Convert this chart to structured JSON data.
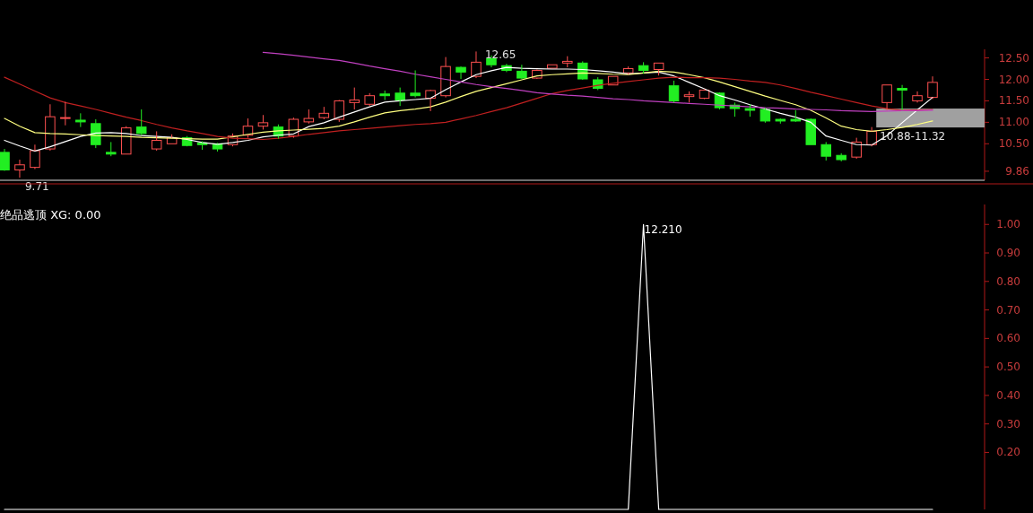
{
  "chart_data": [
    {
      "type": "candlestick",
      "categories": [
        null,
        null,
        null,
        null,
        null,
        null,
        null,
        null,
        null,
        null,
        null,
        null,
        null,
        null,
        null,
        null,
        null,
        null,
        null,
        null,
        null,
        null,
        null,
        null,
        null,
        null,
        null,
        null,
        null,
        null,
        null,
        null,
        null,
        null,
        null,
        null,
        null,
        null,
        null,
        null,
        null,
        null,
        null,
        null,
        null,
        null,
        null,
        null,
        null,
        null,
        null,
        null,
        null,
        null,
        null,
        null,
        null,
        null,
        null,
        null,
        null,
        null
      ],
      "ohlc": [
        [
          10.3,
          10.38,
          9.87,
          9.89
        ],
        [
          9.89,
          10.13,
          9.71,
          10.01
        ],
        [
          9.95,
          10.48,
          9.91,
          10.34
        ],
        [
          10.38,
          11.42,
          10.34,
          11.13
        ],
        [
          11.09,
          11.48,
          10.93,
          11.11
        ],
        [
          11.05,
          11.21,
          10.89,
          11.01
        ],
        [
          10.97,
          11.07,
          10.4,
          10.48
        ],
        [
          10.3,
          10.54,
          10.21,
          10.26
        ],
        [
          10.26,
          10.91,
          10.26,
          10.87
        ],
        [
          10.89,
          11.3,
          10.7,
          10.74
        ],
        [
          10.38,
          10.79,
          10.34,
          10.58
        ],
        [
          10.5,
          10.72,
          10.5,
          10.64
        ],
        [
          10.64,
          10.68,
          10.44,
          10.46
        ],
        [
          10.52,
          10.56,
          10.36,
          10.48
        ],
        [
          10.5,
          10.52,
          10.32,
          10.38
        ],
        [
          10.48,
          10.74,
          10.44,
          10.68
        ],
        [
          10.7,
          11.09,
          10.64,
          10.91
        ],
        [
          10.91,
          11.17,
          10.83,
          10.99
        ],
        [
          10.89,
          10.95,
          10.62,
          10.68
        ],
        [
          10.68,
          11.11,
          10.64,
          11.07
        ],
        [
          11.01,
          11.3,
          10.97,
          11.09
        ],
        [
          11.11,
          11.36,
          11.07,
          11.21
        ],
        [
          11.07,
          11.52,
          11.01,
          11.5
        ],
        [
          11.46,
          11.81,
          11.3,
          11.52
        ],
        [
          11.42,
          11.68,
          11.38,
          11.62
        ],
        [
          11.66,
          11.74,
          11.52,
          11.62
        ],
        [
          11.68,
          11.81,
          11.38,
          11.52
        ],
        [
          11.68,
          12.21,
          11.58,
          11.62
        ],
        [
          11.56,
          11.76,
          11.26,
          11.74
        ],
        [
          11.62,
          12.52,
          11.58,
          12.3
        ],
        [
          12.28,
          12.3,
          12.01,
          12.17
        ],
        [
          12.07,
          12.65,
          12.03,
          12.4
        ],
        [
          12.48,
          12.56,
          12.28,
          12.34
        ],
        [
          12.32,
          12.36,
          12.17,
          12.21
        ],
        [
          12.19,
          12.34,
          12.01,
          12.03
        ],
        [
          12.03,
          12.23,
          12.01,
          12.21
        ],
        [
          12.26,
          12.34,
          12.26,
          12.34
        ],
        [
          12.38,
          12.54,
          12.28,
          12.42
        ],
        [
          12.38,
          12.42,
          11.99,
          12.01
        ],
        [
          11.99,
          12.05,
          11.75,
          11.79
        ],
        [
          11.87,
          12.07,
          11.87,
          12.07
        ],
        [
          12.15,
          12.3,
          12.11,
          12.25
        ],
        [
          12.32,
          12.4,
          12.13,
          12.21
        ],
        [
          12.23,
          12.38,
          12.09,
          12.38
        ],
        [
          11.85,
          11.97,
          11.46,
          11.5
        ],
        [
          11.6,
          11.72,
          11.46,
          11.64
        ],
        [
          11.56,
          11.77,
          11.54,
          11.75
        ],
        [
          11.68,
          11.7,
          11.3,
          11.34
        ],
        [
          11.4,
          11.46,
          11.13,
          11.32
        ],
        [
          11.32,
          11.42,
          11.13,
          11.28
        ],
        [
          11.3,
          11.34,
          10.99,
          11.03
        ],
        [
          11.07,
          11.09,
          10.97,
          11.03
        ],
        [
          11.07,
          11.28,
          11.01,
          11.03
        ],
        [
          11.07,
          11.09,
          10.48,
          10.48
        ],
        [
          10.48,
          10.54,
          10.11,
          10.21
        ],
        [
          10.23,
          10.28,
          10.09,
          10.13
        ],
        [
          10.19,
          10.64,
          10.15,
          10.54
        ],
        [
          10.48,
          10.89,
          10.44,
          10.79
        ],
        [
          11.46,
          11.87,
          11.28,
          11.87
        ],
        [
          11.79,
          11.87,
          11.28,
          11.75
        ],
        [
          11.5,
          11.72,
          11.46,
          11.62
        ],
        [
          11.58,
          12.07,
          11.54,
          11.93
        ]
      ],
      "series": [
        {
          "type": "line",
          "color": "#ffffff",
          "values": [
            10.58,
            10.45,
            10.33,
            10.43,
            10.55,
            10.67,
            10.75,
            10.76,
            10.74,
            10.69,
            10.67,
            10.65,
            10.6,
            10.53,
            10.49,
            10.53,
            10.58,
            10.66,
            10.7,
            10.73,
            10.9,
            10.99,
            11.12,
            11.24,
            11.36,
            11.47,
            11.5,
            11.53,
            11.56,
            11.76,
            11.94,
            12.11,
            12.2,
            12.28,
            12.26,
            12.25,
            12.24,
            12.24,
            12.23,
            12.2,
            12.17,
            12.13,
            12.15,
            12.17,
            12.08,
            11.93,
            11.78,
            11.62,
            11.52,
            11.41,
            11.31,
            11.21,
            11.12,
            11.0,
            10.68,
            10.58,
            10.48,
            10.47,
            10.69,
            10.99,
            11.29,
            11.58
          ]
        },
        {
          "type": "line",
          "color": "#ffff80",
          "values": [
            11.09,
            10.91,
            10.76,
            10.74,
            10.73,
            10.71,
            10.69,
            10.68,
            10.67,
            10.65,
            10.64,
            10.63,
            10.62,
            10.61,
            10.61,
            10.66,
            10.72,
            10.77,
            10.8,
            10.82,
            10.84,
            10.86,
            10.91,
            11.01,
            11.12,
            11.22,
            11.27,
            11.31,
            11.36,
            11.47,
            11.6,
            11.72,
            11.81,
            11.9,
            11.99,
            12.08,
            12.11,
            12.13,
            12.15,
            12.14,
            12.12,
            12.11,
            12.15,
            12.19,
            12.17,
            12.11,
            12.04,
            11.94,
            11.83,
            11.72,
            11.61,
            11.51,
            11.41,
            11.28,
            11.1,
            10.91,
            10.83,
            10.79,
            10.83,
            10.88,
            10.95,
            11.03
          ]
        },
        {
          "type": "line",
          "color": "#c02020",
          "values": [
            12.05,
            11.89,
            11.73,
            11.57,
            11.46,
            11.38,
            11.3,
            11.21,
            11.12,
            11.04,
            10.95,
            10.87,
            10.8,
            10.74,
            10.67,
            10.63,
            10.62,
            10.6,
            10.63,
            10.67,
            10.72,
            10.76,
            10.8,
            10.83,
            10.86,
            10.89,
            10.92,
            10.95,
            10.97,
            11.0,
            11.08,
            11.16,
            11.25,
            11.34,
            11.45,
            11.56,
            11.67,
            11.74,
            11.8,
            11.86,
            11.91,
            11.95,
            11.99,
            12.03,
            12.05,
            12.04,
            12.04,
            12.03,
            12.0,
            11.96,
            11.93,
            11.87,
            11.79,
            11.7,
            11.62,
            11.54,
            11.46,
            11.38,
            11.32,
            11.28,
            11.29,
            11.3
          ]
        },
        {
          "type": "line",
          "color": "#c040c0",
          "values": [
            null,
            null,
            null,
            null,
            null,
            null,
            null,
            null,
            null,
            null,
            null,
            null,
            null,
            null,
            null,
            null,
            null,
            12.63,
            12.6,
            12.56,
            12.52,
            12.48,
            12.44,
            12.38,
            12.31,
            12.25,
            12.19,
            12.12,
            12.06,
            12.0,
            11.94,
            11.88,
            11.83,
            11.79,
            11.74,
            11.69,
            11.66,
            11.63,
            11.61,
            11.58,
            11.55,
            11.53,
            11.5,
            11.48,
            11.46,
            11.44,
            11.42,
            11.4,
            11.38,
            11.36,
            11.34,
            11.33,
            11.31,
            11.3,
            11.29,
            11.27,
            11.26,
            11.25,
            11.26,
            11.27,
            11.27,
            11.28
          ]
        }
      ],
      "ylim": [
        9.65,
        12.7
      ],
      "yticks": [
        {
          "value": 12.5,
          "label": "12.50"
        },
        {
          "value": 12,
          "label": "12.00"
        },
        {
          "value": 11.5,
          "label": "11.50"
        },
        {
          "value": 11,
          "label": "11.00"
        },
        {
          "value": 10.5,
          "label": "10.50"
        },
        {
          "value": 9.86,
          "label": "9.86"
        }
      ],
      "bands": [
        {
          "axis": "y",
          "from": 10.88,
          "to": 11.32,
          "label": "10.88-11.32",
          "color": "#a0a0a0"
        }
      ],
      "annotations": [
        "12.65",
        "9.71"
      ],
      "tick_labels": "y"
    },
    {
      "type": "line",
      "title": "绝品逃顶 XG: 0.00",
      "categories": [
        null,
        null,
        null,
        null,
        null,
        null,
        null,
        null,
        null,
        null,
        null,
        null,
        null,
        null,
        null,
        null,
        null,
        null,
        null,
        null,
        null,
        null,
        null,
        null,
        null,
        null,
        null,
        null,
        null,
        null,
        null,
        null,
        null,
        null,
        null,
        null,
        null,
        null,
        null,
        null,
        null,
        null,
        null,
        null,
        null,
        null,
        null,
        null,
        null,
        null,
        null,
        null,
        null,
        null,
        null,
        null,
        null,
        null,
        null,
        null,
        null,
        null
      ],
      "color": "#ffffff",
      "values": [
        0,
        0,
        0,
        0,
        0,
        0,
        0,
        0,
        0,
        0,
        0,
        0,
        0,
        0,
        0,
        0,
        0,
        0,
        0,
        0,
        0,
        0,
        0,
        0,
        0,
        0,
        0,
        0,
        0,
        0,
        0,
        0,
        0,
        0,
        0,
        0,
        0,
        0,
        0,
        0,
        0,
        0,
        1,
        0,
        0,
        0,
        0,
        0,
        0,
        0,
        0,
        0,
        0,
        0,
        0,
        0,
        0,
        0,
        0,
        0,
        0,
        0
      ],
      "ylim": [
        0,
        1.07
      ],
      "yticks": [
        {
          "value": 1,
          "label": "1.00"
        },
        {
          "value": 0.9,
          "label": "0.90"
        },
        {
          "value": 0.8,
          "label": "0.80"
        },
        {
          "value": 0.7,
          "label": "0.70"
        },
        {
          "value": 0.6,
          "label": "0.60"
        },
        {
          "value": 0.5,
          "label": "0.50"
        },
        {
          "value": 0.4,
          "label": "0.40"
        },
        {
          "value": 0.3,
          "label": "0.30"
        },
        {
          "value": 0.2,
          "label": "0.20"
        }
      ],
      "annotations": [
        "12.210"
      ],
      "tick_labels": "y"
    }
  ]
}
